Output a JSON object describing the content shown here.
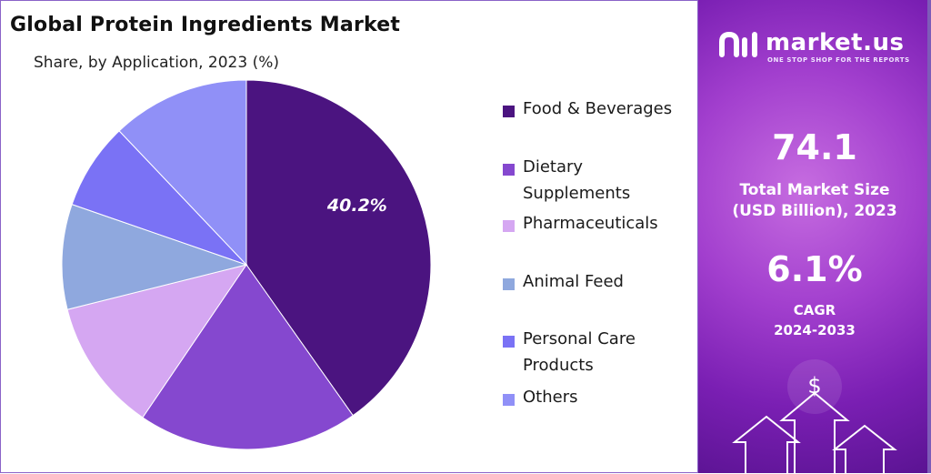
{
  "header": {
    "title": "Global Protein Ingredients Market",
    "subtitle": "Share, by Application, 2023 (%)"
  },
  "chart_data": {
    "type": "pie",
    "title": "Global Protein Ingredients Market",
    "subtitle": "Share, by Application, 2023 (%)",
    "categories": [
      "Food & Beverages",
      "Dietary Supplements",
      "Pharmaceuticals",
      "Animal Feed",
      "Personal Care Products",
      "Others"
    ],
    "values": [
      40.2,
      19.3,
      11.6,
      9.2,
      7.6,
      12.1
    ],
    "colors": [
      "#4b1480",
      "#8548cf",
      "#d5a7f2",
      "#8fa8de",
      "#7a72f5",
      "#9090f7"
    ],
    "data_labels": [
      "40.2%",
      "",
      "",
      "",
      "",
      ""
    ],
    "legend_position": "right",
    "legend": [
      {
        "lines": [
          "Food & Beverages"
        ],
        "color": "#4b1480"
      },
      {
        "lines": [
          "Dietary",
          "Supplements"
        ],
        "color": "#8548cf"
      },
      {
        "lines": [
          "Pharmaceuticals"
        ],
        "color": "#d5a7f2"
      },
      {
        "lines": [
          "Animal Feed"
        ],
        "color": "#8fa8de"
      },
      {
        "lines": [
          "Personal Care",
          "Products"
        ],
        "color": "#7a72f5"
      },
      {
        "lines": [
          "Others"
        ],
        "color": "#9090f7"
      }
    ]
  },
  "sidebar": {
    "brand_name": "market.us",
    "brand_tagline": "ONE STOP SHOP FOR THE REPORTS",
    "market_size_value": "74.1",
    "market_size_label_1": "Total Market Size",
    "market_size_label_2": "(USD Billion), 2023",
    "cagr_value": "6.1%",
    "cagr_label_1": "CAGR",
    "cagr_label_2": "2024-2033",
    "currency_symbol": "$"
  }
}
